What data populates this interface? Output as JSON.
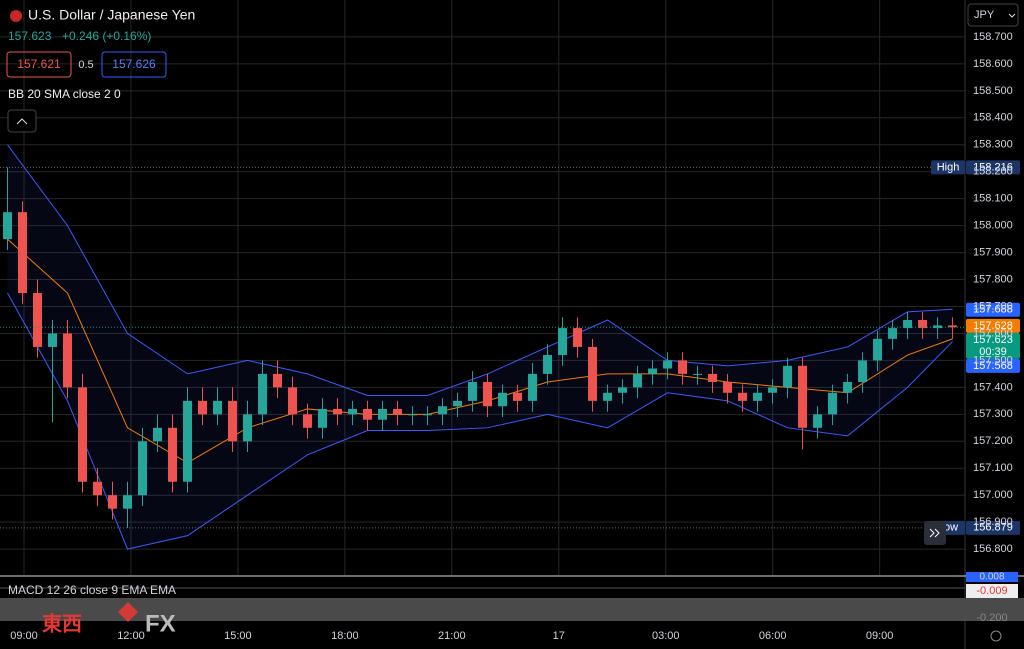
{
  "header": {
    "symbol": "U.S. Dollar / Japanese Yen",
    "price": "157.623",
    "change": "+0.246 (+0.16%)",
    "bid": "157.621",
    "spread": "0.5",
    "ask": "157.626",
    "indicator": "BB 20 SMA close 2 0",
    "currency": "JPY"
  },
  "macd": {
    "label": "MACD 12 26 close 9 EMA EMA",
    "top": "0.008",
    "value": "-0.009",
    "bottom": "-0.200"
  },
  "watermark": {
    "cjk": "東西",
    "fx": "FX"
  },
  "chart_data": {
    "type": "candlestick",
    "up_color": "#26a69a",
    "down_color": "#ef5350",
    "grid": true,
    "xlim": [
      -0.5,
      63.83
    ],
    "ylim": [
      156.704,
      158.837
    ],
    "xticks": [
      {
        "value": 1.1,
        "label": "09:00"
      },
      {
        "value": 8.23,
        "label": "12:00"
      },
      {
        "value": 15.36,
        "label": "15:00"
      },
      {
        "value": 22.49,
        "label": "18:00"
      },
      {
        "value": 29.62,
        "label": "21:00"
      },
      {
        "value": 36.75,
        "label": "17"
      },
      {
        "value": 43.88,
        "label": "03:00"
      },
      {
        "value": 51.01,
        "label": "06:00"
      },
      {
        "value": 58.14,
        "label": "09:00"
      }
    ],
    "yticks": [
      {
        "value": 156.8,
        "label": "156.800"
      },
      {
        "value": 156.9,
        "label": "156.900"
      },
      {
        "value": 157.0,
        "label": "157.000"
      },
      {
        "value": 157.1,
        "label": "157.100"
      },
      {
        "value": 157.2,
        "label": "157.200"
      },
      {
        "value": 157.3,
        "label": "157.300"
      },
      {
        "value": 157.4,
        "label": "157.400"
      },
      {
        "value": 157.5,
        "label": "157.500"
      },
      {
        "value": 157.6,
        "label": "157.600"
      },
      {
        "value": 157.7,
        "label": "157.700"
      },
      {
        "value": 157.8,
        "label": "157.800"
      },
      {
        "value": 157.9,
        "label": "157.900"
      },
      {
        "value": 158.0,
        "label": "158.000"
      },
      {
        "value": 158.1,
        "label": "158.100"
      },
      {
        "value": 158.2,
        "label": "158.200"
      },
      {
        "value": 158.3,
        "label": "158.300"
      },
      {
        "value": 158.4,
        "label": "158.400"
      },
      {
        "value": 158.5,
        "label": "158.500"
      },
      {
        "value": 158.6,
        "label": "158.600"
      },
      {
        "value": 158.7,
        "label": "158.700"
      }
    ],
    "open": [
      157.95,
      158.05,
      157.75,
      157.55,
      157.6,
      157.4,
      157.05,
      157.0,
      156.95,
      157.0,
      157.2,
      157.25,
      157.05,
      157.35,
      157.3,
      157.35,
      157.2,
      157.3,
      157.45,
      157.4,
      157.3,
      157.25,
      157.32,
      157.3,
      157.32,
      157.28,
      157.32,
      157.3,
      157.3,
      157.3,
      157.33,
      157.35,
      157.42,
      157.33,
      157.38,
      157.35,
      157.45,
      157.52,
      157.62,
      157.55,
      157.35,
      157.38,
      157.4,
      157.45,
      157.47,
      157.5,
      157.45,
      157.45,
      157.42,
      157.38,
      157.35,
      157.38,
      157.4,
      157.48,
      157.25,
      157.3,
      157.38,
      157.42,
      157.5,
      157.58,
      157.62,
      157.65,
      157.62,
      157.63
    ],
    "high": [
      158.216,
      158.09,
      157.8,
      157.65,
      157.65,
      157.45,
      157.1,
      157.05,
      157.05,
      157.25,
      157.3,
      157.3,
      157.4,
      157.4,
      157.4,
      157.4,
      157.35,
      157.5,
      157.5,
      157.44,
      157.34,
      157.36,
      157.36,
      157.35,
      157.35,
      157.35,
      157.35,
      157.33,
      157.33,
      157.36,
      157.38,
      157.46,
      157.45,
      157.41,
      157.41,
      157.49,
      157.56,
      157.66,
      157.66,
      157.58,
      157.41,
      157.43,
      157.48,
      157.5,
      157.53,
      157.53,
      157.48,
      157.48,
      157.45,
      157.41,
      157.41,
      157.43,
      157.51,
      157.51,
      157.33,
      157.41,
      157.45,
      157.53,
      157.61,
      157.65,
      157.68,
      157.68,
      157.66,
      157.66
    ],
    "low": [
      157.91,
      157.71,
      157.51,
      157.27,
      157.36,
      157.01,
      156.96,
      156.91,
      156.879,
      156.96,
      157.16,
      157.01,
      157.01,
      157.26,
      157.26,
      157.16,
      157.16,
      157.26,
      157.36,
      157.26,
      157.21,
      157.21,
      157.26,
      157.26,
      157.24,
      157.24,
      157.26,
      157.26,
      157.26,
      157.26,
      157.29,
      157.31,
      157.29,
      157.29,
      157.31,
      157.31,
      157.41,
      157.48,
      157.51,
      157.31,
      157.31,
      157.34,
      157.36,
      157.41,
      157.43,
      157.41,
      157.41,
      157.38,
      157.34,
      157.31,
      157.31,
      157.34,
      157.36,
      157.17,
      157.21,
      157.26,
      157.34,
      157.38,
      157.46,
      157.54,
      157.58,
      157.58,
      157.58,
      157.58
    ],
    "close": [
      158.05,
      157.75,
      157.55,
      157.6,
      157.4,
      157.05,
      157.0,
      156.95,
      157.0,
      157.2,
      157.25,
      157.05,
      157.35,
      157.3,
      157.35,
      157.2,
      157.3,
      157.45,
      157.4,
      157.3,
      157.25,
      157.32,
      157.3,
      157.32,
      157.28,
      157.32,
      157.3,
      157.3,
      157.3,
      157.33,
      157.35,
      157.42,
      157.33,
      157.38,
      157.35,
      157.45,
      157.52,
      157.62,
      157.55,
      157.35,
      157.38,
      157.4,
      157.45,
      157.47,
      157.5,
      157.45,
      157.45,
      157.42,
      157.38,
      157.35,
      157.38,
      157.4,
      157.48,
      157.25,
      157.3,
      157.38,
      157.42,
      157.5,
      157.58,
      157.62,
      157.65,
      157.62,
      157.63,
      157.623
    ],
    "bands": {
      "x": [
        0,
        4,
        8,
        12,
        16,
        20,
        24,
        28,
        32,
        36,
        40,
        44,
        48,
        52,
        56,
        60,
        63
      ],
      "upper": [
        158.3,
        158.0,
        157.6,
        157.45,
        157.5,
        157.45,
        157.37,
        157.37,
        157.45,
        157.55,
        157.65,
        157.5,
        157.48,
        157.5,
        157.55,
        157.68,
        157.69
      ],
      "middle": [
        157.95,
        157.75,
        157.25,
        157.12,
        157.25,
        157.32,
        157.3,
        157.3,
        157.35,
        157.42,
        157.45,
        157.45,
        157.42,
        157.4,
        157.38,
        157.52,
        157.58
      ],
      "lower": [
        157.75,
        157.35,
        156.8,
        156.85,
        157.0,
        157.15,
        157.24,
        157.24,
        157.25,
        157.3,
        157.25,
        157.38,
        157.35,
        157.25,
        157.22,
        157.4,
        157.57
      ],
      "band_color": "#3d5afe",
      "middle_color": "#f57c00"
    },
    "price_tags": [
      {
        "label": "High",
        "value": 158.216,
        "color": "#1c3566",
        "line": "#666666"
      },
      {
        "value": 157.688,
        "color": "#2962ff"
      },
      {
        "value": 157.628,
        "color": "#f57c00"
      },
      {
        "value": 157.623,
        "sub": "00:39",
        "color": "#089981",
        "line": "#089981"
      },
      {
        "value": 157.568,
        "color": "#2962ff"
      },
      {
        "label": "Low",
        "value": 156.879,
        "color": "#1c3566",
        "line": "#666666"
      }
    ]
  }
}
